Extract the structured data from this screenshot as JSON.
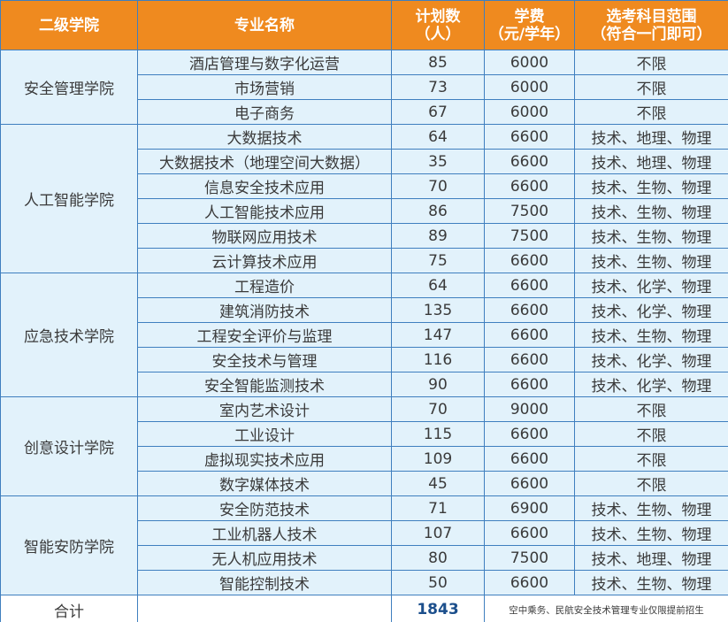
{
  "headers": {
    "college": "二级学院",
    "major": "专业名称",
    "plan_line1": "计划数",
    "plan_line2": "（人）",
    "fee_line1": "学费",
    "fee_line2": "（元/学年）",
    "subjects_line1": "选考科目范围",
    "subjects_line2": "（符合一门即可）"
  },
  "groups": [
    {
      "college": "安全管理学院",
      "rows": [
        {
          "major": "酒店管理与数字化运营",
          "plan": "85",
          "fee": "6000",
          "subjects": "不限"
        },
        {
          "major": "市场营销",
          "plan": "73",
          "fee": "6000",
          "subjects": "不限"
        },
        {
          "major": "电子商务",
          "plan": "67",
          "fee": "6000",
          "subjects": "不限"
        }
      ]
    },
    {
      "college": "人工智能学院",
      "rows": [
        {
          "major": "大数据技术",
          "plan": "64",
          "fee": "6600",
          "subjects": "技术、地理、物理"
        },
        {
          "major": "大数据技术（地理空间大数据）",
          "plan": "35",
          "fee": "6600",
          "subjects": "技术、地理、物理"
        },
        {
          "major": "信息安全技术应用",
          "plan": "70",
          "fee": "6600",
          "subjects": "技术、生物、物理"
        },
        {
          "major": "人工智能技术应用",
          "plan": "86",
          "fee": "7500",
          "subjects": "技术、生物、物理"
        },
        {
          "major": "物联网应用技术",
          "plan": "89",
          "fee": "7500",
          "subjects": "技术、生物、物理"
        },
        {
          "major": "云计算技术应用",
          "plan": "75",
          "fee": "6600",
          "subjects": "技术、生物、物理"
        }
      ]
    },
    {
      "college": "应急技术学院",
      "rows": [
        {
          "major": "工程造价",
          "plan": "64",
          "fee": "6600",
          "subjects": "技术、化学、物理"
        },
        {
          "major": "建筑消防技术",
          "plan": "135",
          "fee": "6600",
          "subjects": "技术、化学、物理"
        },
        {
          "major": "工程安全评价与监理",
          "plan": "147",
          "fee": "6600",
          "subjects": "技术、生物、物理"
        },
        {
          "major": "安全技术与管理",
          "plan": "116",
          "fee": "6600",
          "subjects": "技术、化学、物理"
        },
        {
          "major": "安全智能监测技术",
          "plan": "90",
          "fee": "6600",
          "subjects": "技术、化学、物理"
        }
      ]
    },
    {
      "college": "创意设计学院",
      "rows": [
        {
          "major": "室内艺术设计",
          "plan": "70",
          "fee": "9000",
          "subjects": "不限"
        },
        {
          "major": "工业设计",
          "plan": "115",
          "fee": "6600",
          "subjects": "不限"
        },
        {
          "major": "虚拟现实技术应用",
          "plan": "109",
          "fee": "6600",
          "subjects": "不限"
        },
        {
          "major": "数字媒体技术",
          "plan": "45",
          "fee": "6600",
          "subjects": "不限"
        }
      ]
    },
    {
      "college": "智能安防学院",
      "rows": [
        {
          "major": "安全防范技术",
          "plan": "71",
          "fee": "6900",
          "subjects": "技术、生物、物理"
        },
        {
          "major": "工业机器人技术",
          "plan": "107",
          "fee": "6600",
          "subjects": "技术、生物、物理"
        },
        {
          "major": "无人机应用技术",
          "plan": "80",
          "fee": "7500",
          "subjects": "技术、地理、物理"
        },
        {
          "major": "智能控制技术",
          "plan": "50",
          "fee": "6600",
          "subjects": "技术、生物、物理"
        }
      ]
    }
  ],
  "footer": {
    "label": "合计",
    "total": "1843",
    "note": "空中乘务、民航安全技术管理专业仅限提前招生"
  }
}
